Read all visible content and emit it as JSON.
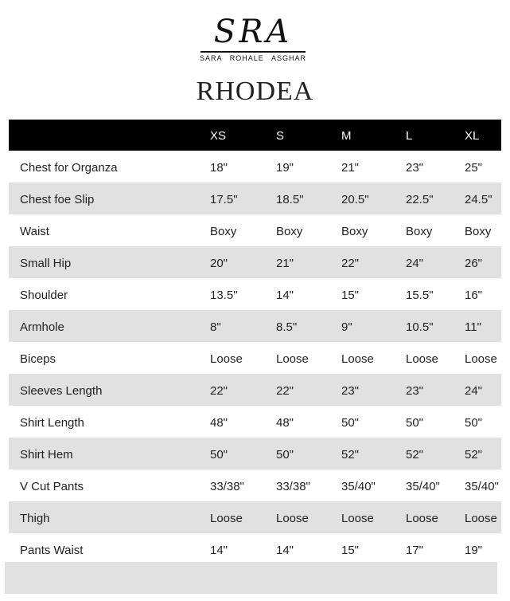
{
  "brand": {
    "logo_text": "SRA",
    "tagline": [
      "SARA",
      "ROHALE",
      "ASGHAR"
    ]
  },
  "title": "RHODEA",
  "table": {
    "headers": [
      "",
      "XS",
      "S",
      "M",
      "L",
      "XL"
    ],
    "rows": [
      [
        "Chest for Organza",
        "18\"",
        "19\"",
        "21\"",
        "23\"",
        "25\""
      ],
      [
        "Chest foe Slip",
        "17.5\"",
        "18.5\"",
        "20.5\"",
        "22.5\"",
        "24.5\""
      ],
      [
        "Waist",
        "Boxy",
        "Boxy",
        "Boxy",
        "Boxy",
        "Boxy"
      ],
      [
        "Small Hip",
        "20\"",
        "21\"",
        "22\"",
        "24\"",
        "26\""
      ],
      [
        "Shoulder",
        "13.5\"",
        "14\"",
        "15\"",
        "15.5\"",
        "16\""
      ],
      [
        "Armhole",
        "8\"",
        "8.5\"",
        "9\"",
        "10.5\"",
        "11\""
      ],
      [
        "Biceps",
        "Loose",
        "Loose",
        "Loose",
        "Loose",
        "Loose"
      ],
      [
        "Sleeves Length",
        "22\"",
        "22\"",
        "23\"",
        "23\"",
        "24\""
      ],
      [
        "Shirt Length",
        "48\"",
        "48\"",
        "50\"",
        "50\"",
        "50\""
      ],
      [
        "Shirt Hem",
        "50\"",
        "50\"",
        "52\"",
        "52\"",
        "52\""
      ],
      [
        "V Cut Pants",
        "33/38\"",
        "33/38\"",
        "35/40\"",
        "35/40\"",
        "35/40\""
      ],
      [
        "Thigh",
        "Loose",
        "Loose",
        "Loose",
        "Loose",
        "Loose"
      ],
      [
        "Pants Waist",
        "14\"",
        "14\"",
        "15\"",
        "17\"",
        "19\""
      ]
    ]
  },
  "colors": {
    "header_bg": "#000000",
    "stripe": "#e1e1e1"
  }
}
